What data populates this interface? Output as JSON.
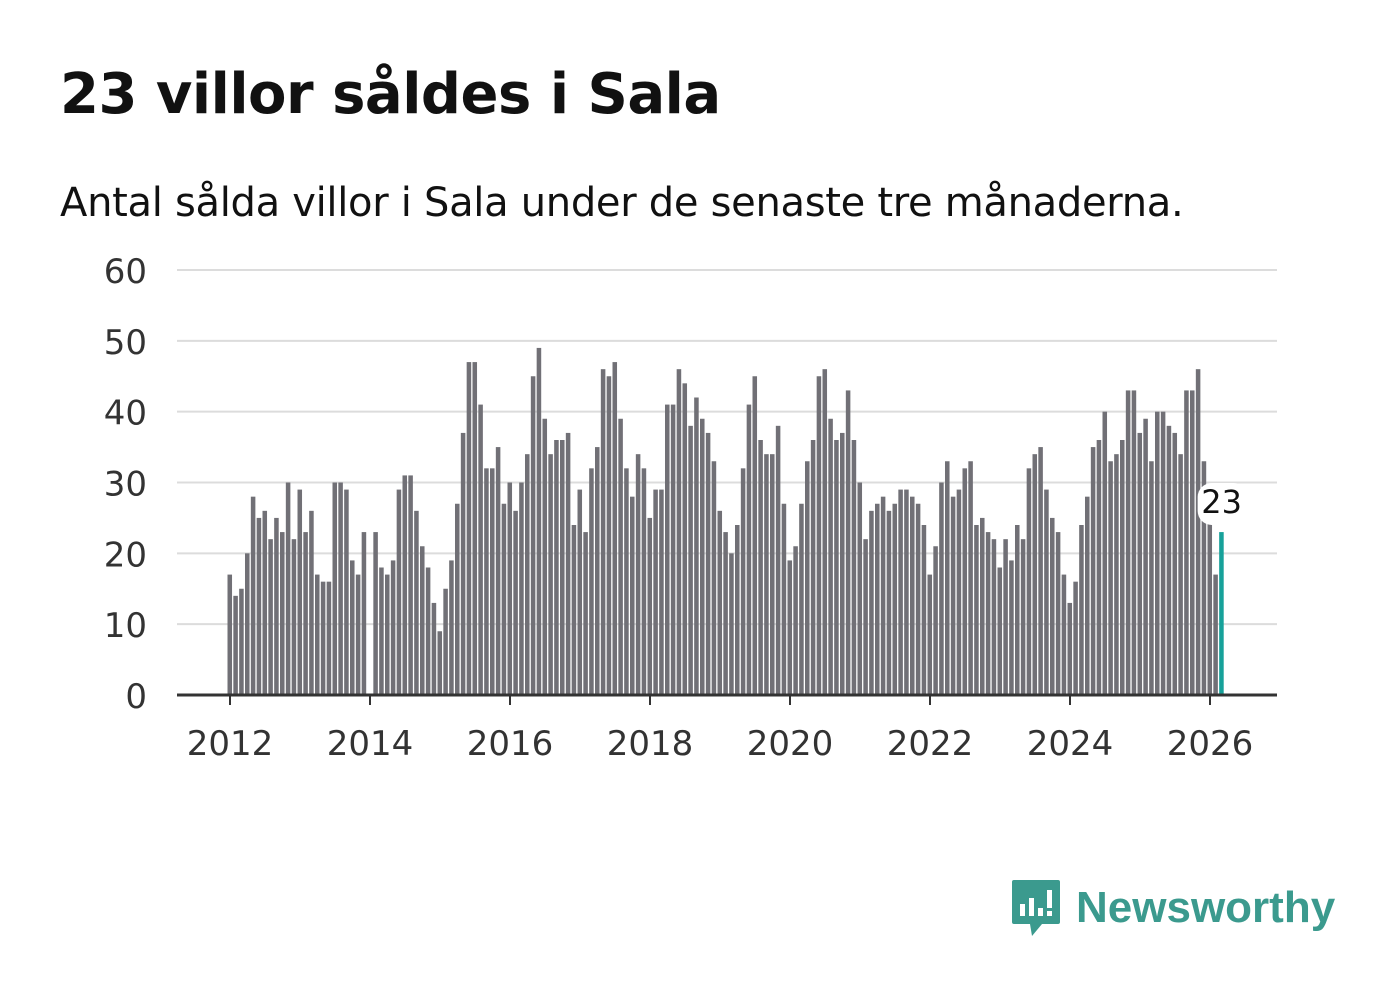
{
  "title": "23 villor såldes i Sala",
  "subtitle": "Antal sålda villor i Sala under de senaste tre månaderna.",
  "brand": {
    "name": "Newsworthy",
    "color": "#3b9a8e"
  },
  "chart_data": {
    "type": "bar",
    "title": "23 villor såldes i Sala",
    "xlabel": "",
    "ylabel": "",
    "ylim": [
      0,
      60
    ],
    "yticks": [
      "0",
      "10",
      "20",
      "30",
      "40",
      "50",
      "60"
    ],
    "xticks": [
      "2012",
      "2014",
      "2016",
      "2018",
      "2020",
      "2022",
      "2024",
      "2026"
    ],
    "start": "2012-01",
    "frequency": "monthly",
    "highlight_label": "23",
    "bar_color": "#717076",
    "highlight_color": "#17a19a",
    "values": [
      17,
      14,
      15,
      20,
      28,
      25,
      26,
      22,
      25,
      23,
      30,
      22,
      29,
      23,
      26,
      17,
      16,
      16,
      30,
      30,
      29,
      19,
      17,
      23,
      0,
      23,
      18,
      17,
      19,
      29,
      31,
      31,
      26,
      21,
      18,
      13,
      9,
      15,
      19,
      27,
      37,
      47,
      47,
      41,
      32,
      32,
      35,
      27,
      30,
      26,
      30,
      34,
      45,
      49,
      39,
      34,
      36,
      36,
      37,
      24,
      29,
      23,
      32,
      35,
      46,
      45,
      47,
      39,
      32,
      28,
      34,
      32,
      25,
      29,
      29,
      41,
      41,
      46,
      44,
      38,
      42,
      39,
      37,
      33,
      26,
      23,
      20,
      24,
      32,
      41,
      45,
      36,
      34,
      34,
      38,
      27,
      19,
      21,
      27,
      33,
      36,
      45,
      46,
      39,
      36,
      37,
      43,
      36,
      30,
      22,
      26,
      27,
      28,
      26,
      27,
      29,
      29,
      28,
      27,
      24,
      17,
      21,
      30,
      33,
      28,
      29,
      32,
      33,
      24,
      25,
      23,
      22,
      18,
      22,
      19,
      24,
      22,
      32,
      34,
      35,
      29,
      25,
      23,
      17,
      13,
      16,
      24,
      28,
      35,
      36,
      40,
      33,
      34,
      36,
      43,
      43,
      37,
      39,
      33,
      40,
      40,
      38,
      37,
      34,
      43,
      43,
      46,
      33,
      25,
      17,
      23
    ]
  }
}
